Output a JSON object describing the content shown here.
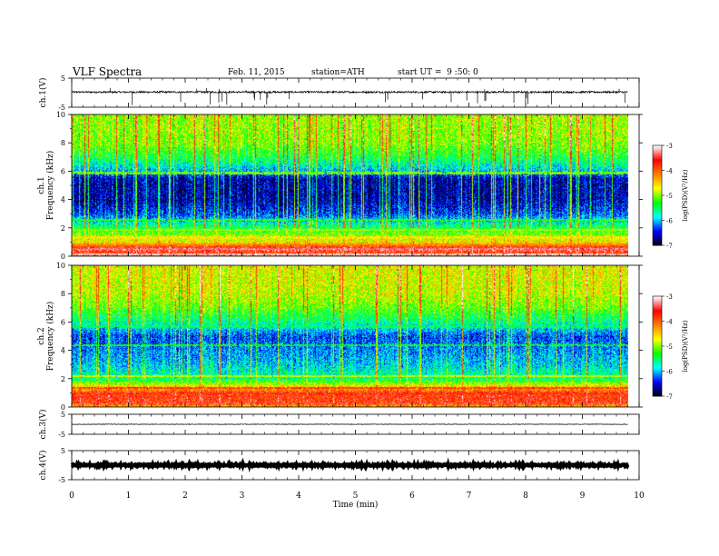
{
  "header": {
    "title": "VLF Spectra",
    "date": "Feb. 11, 2015",
    "station": "station=ATH",
    "start": "start UT =  9 :50: 0"
  },
  "chart_data": [
    {
      "type": "line",
      "panel": "ch1-waveform",
      "ylabel": "ch.1(V)",
      "ylim": [
        -5,
        5
      ],
      "y_ticks": [
        "5",
        "-5"
      ],
      "baseline_v": 0.2,
      "noise_v": 0.3,
      "spike_count": 40,
      "spike_max_v": -4.5,
      "color": "#000000"
    },
    {
      "type": "heatmap",
      "panel": "ch1-spectrogram",
      "ylabel_channel": "ch.1",
      "ylabel": "Frequency  (kHz)",
      "ylim": [
        0,
        10
      ],
      "y_ticks": [
        "0",
        "2",
        "4",
        "6",
        "8",
        "10"
      ],
      "colorbar": {
        "label": "log(PSD)(V²/Hz)",
        "range": [
          -7,
          -3
        ],
        "ticks": [
          "-3",
          "-4",
          "-5",
          "-6",
          "-7"
        ],
        "colors": [
          "#000000",
          "#0000ff",
          "#00ffff",
          "#00ff00",
          "#ffff00",
          "#ff8000",
          "#ff0000",
          "#ffffff"
        ]
      },
      "profile_khz": [
        [
          0,
          -4.2
        ],
        [
          0.5,
          -3.4
        ],
        [
          1,
          -4.6
        ],
        [
          2,
          -5.4
        ],
        [
          3,
          -6.3
        ],
        [
          4,
          -6.6
        ],
        [
          5.5,
          -6.6
        ],
        [
          6,
          -6.0
        ],
        [
          7,
          -5.4
        ],
        [
          8,
          -5.0
        ],
        [
          10,
          -4.9
        ]
      ],
      "bands_khz": [
        [
          0.15,
          -3.1
        ],
        [
          0.55,
          -3.3
        ],
        [
          0.85,
          -4.2
        ],
        [
          1.35,
          -4.6
        ],
        [
          1.9,
          -4.9
        ],
        [
          2.6,
          -5.2
        ],
        [
          5.9,
          -5.0
        ]
      ]
    },
    {
      "type": "heatmap",
      "panel": "ch2-spectrogram",
      "ylabel_channel": "ch.2",
      "ylabel": "Frequency  (kHz)",
      "ylim": [
        0,
        10
      ],
      "y_ticks": [
        "0",
        "2",
        "4",
        "6",
        "8",
        "10"
      ],
      "colorbar": {
        "label": "log(PSD)(V²/Hz)",
        "range": [
          -7,
          -3
        ],
        "ticks": [
          "-3",
          "-4",
          "-5",
          "-6",
          "-7"
        ],
        "colors": [
          "#000000",
          "#0000ff",
          "#00ffff",
          "#00ff00",
          "#ffff00",
          "#ff8000",
          "#ff0000",
          "#ffffff"
        ]
      },
      "profile_khz": [
        [
          0,
          -4.4
        ],
        [
          0.5,
          -3.7
        ],
        [
          1,
          -3.8
        ],
        [
          1.5,
          -4.6
        ],
        [
          2,
          -5.5
        ],
        [
          3,
          -5.9
        ],
        [
          4,
          -6.1
        ],
        [
          5,
          -6.3
        ],
        [
          6,
          -5.6
        ],
        [
          7,
          -5.1
        ],
        [
          8,
          -4.8
        ],
        [
          10,
          -4.7
        ]
      ],
      "bands_khz": [
        [
          0.3,
          -3.4
        ],
        [
          1.0,
          -3.5
        ],
        [
          1.4,
          -3.8
        ],
        [
          2.2,
          -4.8
        ],
        [
          4.4,
          -5.3
        ],
        [
          5.7,
          -5.5
        ]
      ]
    },
    {
      "type": "line",
      "panel": "ch3-waveform",
      "ylabel": "ch.3(V)",
      "ylim": [
        -5,
        5
      ],
      "y_ticks": [
        "5",
        "-5"
      ],
      "baseline_v": 0.0,
      "noise_v": 0.15,
      "spike_count": 0,
      "spike_max_v": 0,
      "color": "#000000"
    },
    {
      "type": "line",
      "panel": "ch4-waveform",
      "ylabel": "ch.4(V)",
      "ylim": [
        -5,
        5
      ],
      "y_ticks": [
        "5",
        "-5"
      ],
      "baseline_v": 0.0,
      "noise_v": 0.25,
      "spike_count": 0,
      "spike_max_v": 0,
      "color": "#000000"
    }
  ],
  "time_axis": {
    "label": "Time  (min)",
    "ticks": [
      "0",
      "1",
      "2",
      "3",
      "4",
      "5",
      "6",
      "7",
      "8",
      "9",
      "10"
    ],
    "xlim": [
      0,
      10
    ],
    "data_end_min": 9.8
  }
}
